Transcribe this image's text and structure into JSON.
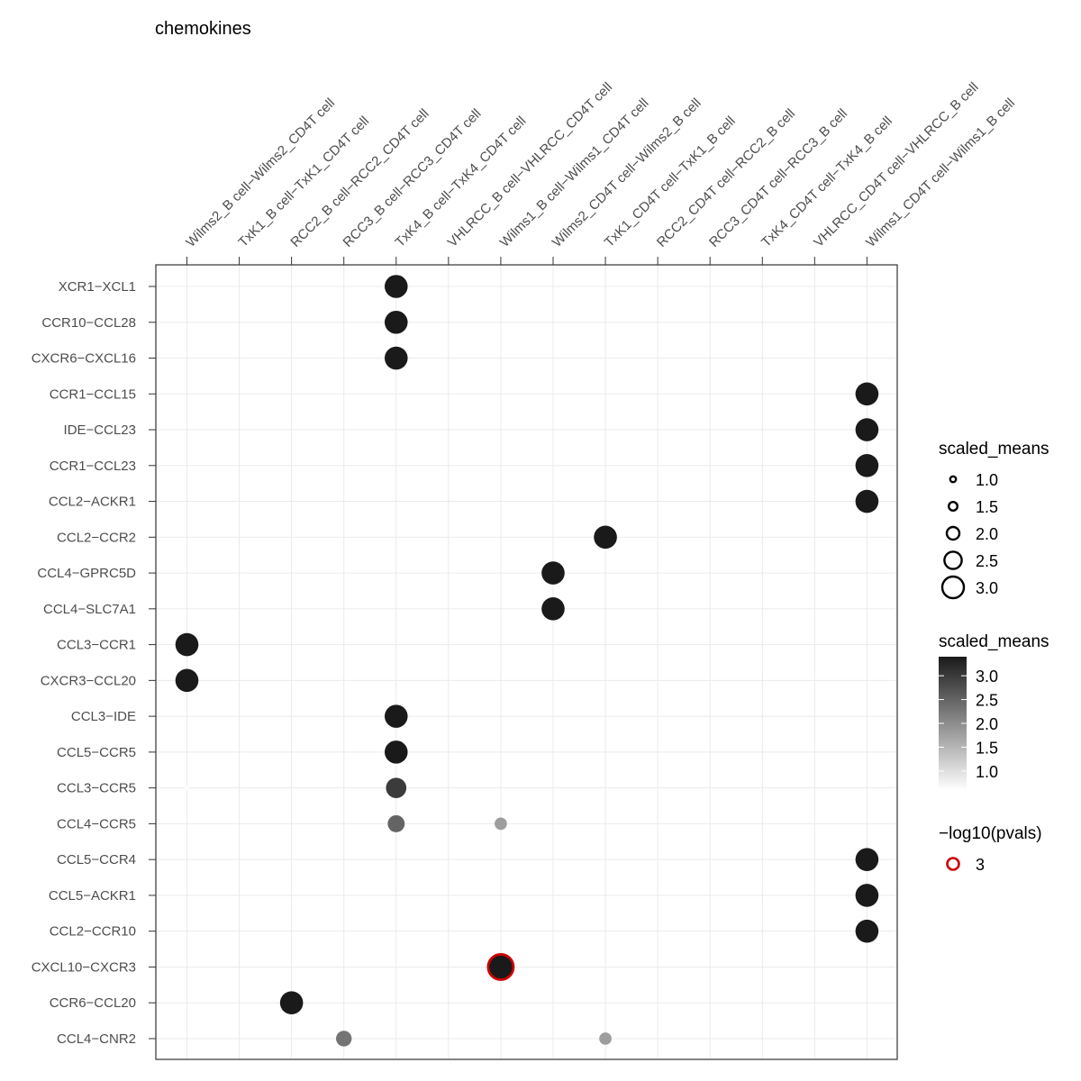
{
  "chart_data": {
    "type": "scatter",
    "title": "chemokines",
    "x_categories": [
      "Wilms2_B cell−Wilms2_CD4T cell",
      "TxK1_B cell−TxK1_CD4T cell",
      "RCC2_B cell−RCC2_CD4T cell",
      "RCC3_B cell−RCC3_CD4T cell",
      "TxK4_B cell−TxK4_CD4T cell",
      "VHLRCC_B cell−VHLRCC_CD4T cell",
      "Wilms1_B cell−Wilms1_CD4T cell",
      "Wilms2_CD4T cell−Wilms2_B cell",
      "TxK1_CD4T cell−TxK1_B cell",
      "RCC2_CD4T cell−RCC2_B cell",
      "RCC3_CD4T cell−RCC3_B cell",
      "TxK4_CD4T cell−TxK4_B cell",
      "VHLRCC_CD4T cell−VHLRCC_B cell",
      "Wilms1_CD4T cell−Wilms1_B cell"
    ],
    "y_categories": [
      "XCR1−XCL1",
      "CCR10−CCL28",
      "CXCR6−CXCL16",
      "CCR1−CCL15",
      "IDE−CCL23",
      "CCR1−CCL23",
      "CCL2−ACKR1",
      "CCL2−CCR2",
      "CCL4−GPRC5D",
      "CCL4−SLC7A1",
      "CCL3−CCR1",
      "CXCR3−CCL20",
      "CCL3−IDE",
      "CCL5−CCR5",
      "CCL3−CCR5",
      "CCL4−CCR5",
      "CCL5−CCR4",
      "CCL5−ACKR1",
      "CCL2−CCR10",
      "CXCL10−CXCR3",
      "CCR6−CCL20",
      "CCL4−CNR2"
    ],
    "points": [
      {
        "x": 4,
        "y": 0,
        "scaled_means": 3.4,
        "significant": false
      },
      {
        "x": 4,
        "y": 1,
        "scaled_means": 3.4,
        "significant": false
      },
      {
        "x": 4,
        "y": 2,
        "scaled_means": 3.4,
        "significant": false
      },
      {
        "x": 13,
        "y": 3,
        "scaled_means": 3.4,
        "significant": false
      },
      {
        "x": 13,
        "y": 4,
        "scaled_means": 3.4,
        "significant": false
      },
      {
        "x": 13,
        "y": 5,
        "scaled_means": 3.4,
        "significant": false
      },
      {
        "x": 13,
        "y": 6,
        "scaled_means": 3.4,
        "significant": false
      },
      {
        "x": 8,
        "y": 7,
        "scaled_means": 3.4,
        "significant": false
      },
      {
        "x": 7,
        "y": 8,
        "scaled_means": 3.4,
        "significant": false
      },
      {
        "x": 7,
        "y": 9,
        "scaled_means": 3.4,
        "significant": false
      },
      {
        "x": 0,
        "y": 10,
        "scaled_means": 3.4,
        "significant": false
      },
      {
        "x": 0,
        "y": 11,
        "scaled_means": 3.4,
        "significant": false
      },
      {
        "x": 4,
        "y": 12,
        "scaled_means": 3.4,
        "significant": false
      },
      {
        "x": 4,
        "y": 13,
        "scaled_means": 3.4,
        "significant": false
      },
      {
        "x": 0,
        "y": 14,
        "scaled_means": 0.5,
        "significant": false
      },
      {
        "x": 4,
        "y": 14,
        "scaled_means": 3.0,
        "significant": false
      },
      {
        "x": 4,
        "y": 15,
        "scaled_means": 2.5,
        "significant": false
      },
      {
        "x": 6,
        "y": 15,
        "scaled_means": 1.8,
        "significant": false
      },
      {
        "x": 13,
        "y": 16,
        "scaled_means": 3.4,
        "significant": false
      },
      {
        "x": 13,
        "y": 17,
        "scaled_means": 3.4,
        "significant": false
      },
      {
        "x": 13,
        "y": 18,
        "scaled_means": 3.4,
        "significant": false
      },
      {
        "x": 6,
        "y": 19,
        "scaled_means": 3.4,
        "significant": true
      },
      {
        "x": 2,
        "y": 20,
        "scaled_means": 3.4,
        "significant": false
      },
      {
        "x": 3,
        "y": 21,
        "scaled_means": 2.3,
        "significant": false
      },
      {
        "x": 8,
        "y": 21,
        "scaled_means": 1.8,
        "significant": false
      }
    ],
    "size_legend": {
      "title": "scaled_means",
      "breaks": [
        "1.0",
        "1.5",
        "2.0",
        "2.5",
        "3.0"
      ]
    },
    "color_legend": {
      "title": "scaled_means",
      "breaks": [
        "3.0",
        "2.5",
        "2.0",
        "1.5",
        "1.0"
      ],
      "range": [
        0.6,
        3.4
      ],
      "low_color": "#ffffff",
      "high_color": "#1a1a1a"
    },
    "pval_legend": {
      "title": "−log10(pvals)",
      "label": "3",
      "stroke_color": "#cc0000"
    },
    "grid": true
  }
}
